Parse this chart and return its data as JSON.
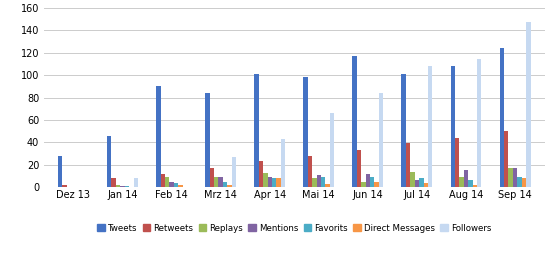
{
  "categories": [
    "Dez 13",
    "Jan 14",
    "Feb 14",
    "Mrz 14",
    "Apr 14",
    "Mai 14",
    "Jun 14",
    "Jul 14",
    "Aug 14",
    "Sep 14"
  ],
  "series": {
    "Tweets": [
      28,
      46,
      90,
      84,
      101,
      98,
      117,
      101,
      108,
      124
    ],
    "Retweets": [
      2,
      8,
      12,
      17,
      23,
      28,
      33,
      39,
      44,
      50
    ],
    "Replays": [
      0,
      2,
      9,
      9,
      13,
      8,
      5,
      14,
      9,
      17
    ],
    "Mentions": [
      0,
      1,
      5,
      9,
      9,
      11,
      12,
      6,
      15,
      17
    ],
    "Favorits": [
      0,
      1,
      4,
      5,
      8,
      9,
      9,
      8,
      6,
      9
    ],
    "Direct Messages": [
      0,
      0,
      2,
      2,
      8,
      3,
      5,
      4,
      2,
      8
    ],
    "Followers": [
      0,
      8,
      0,
      27,
      43,
      66,
      84,
      108,
      114,
      147
    ]
  },
  "colors": {
    "Tweets": "#4472C4",
    "Retweets": "#C0504D",
    "Replays": "#9BBB59",
    "Mentions": "#8064A2",
    "Favorits": "#4BACC6",
    "Direct Messages": "#F79646",
    "Followers": "#C6D9F1"
  },
  "ylim": [
    0,
    160
  ],
  "yticks": [
    0,
    20,
    40,
    60,
    80,
    100,
    120,
    140,
    160
  ],
  "background_color": "#FFFFFF",
  "grid_color": "#CCCCCC",
  "bar_width": 0.09,
  "figsize": [
    5.5,
    2.6
  ],
  "dpi": 100
}
